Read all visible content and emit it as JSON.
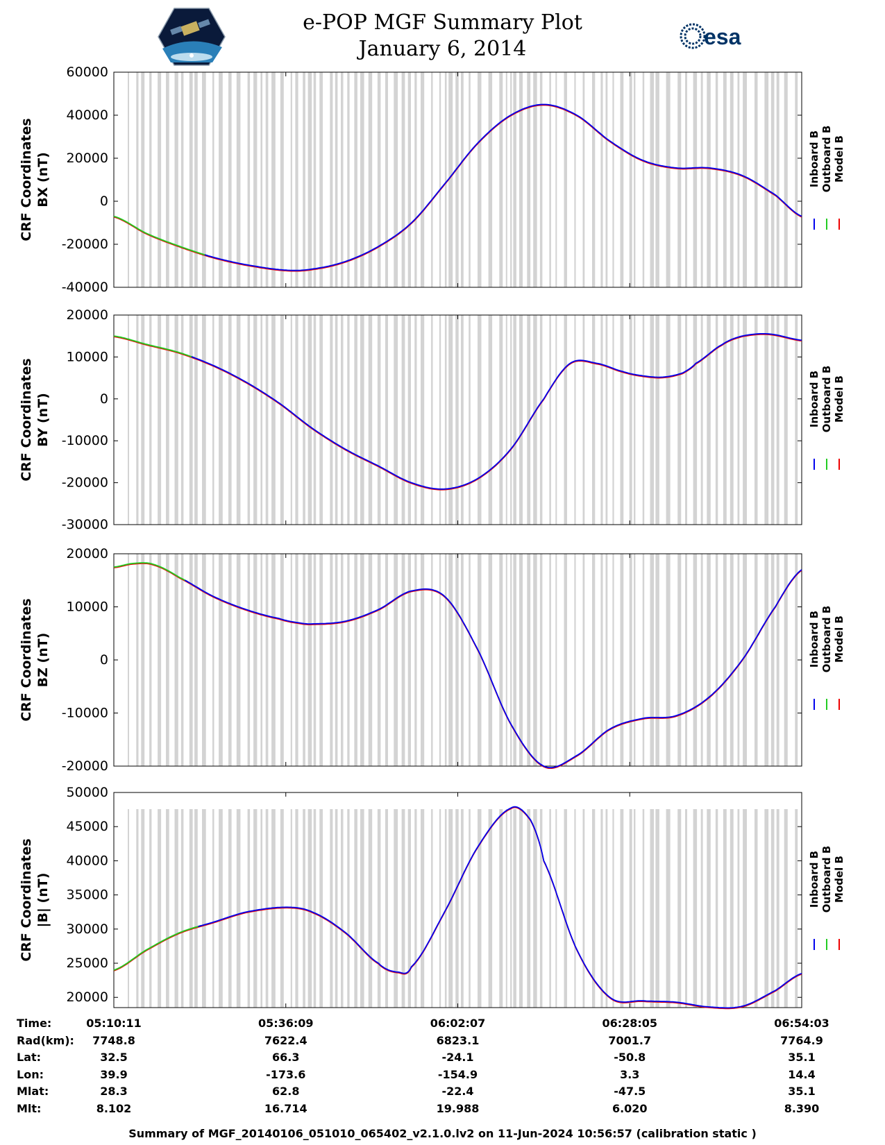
{
  "title": {
    "line1": "e-POP MGF Summary Plot",
    "line2": "January 6, 2014",
    "logo_right_text": "esa"
  },
  "colors": {
    "inboard": "#0000ee",
    "outboard": "#22cc22",
    "model": "#ee0000",
    "gap": "#d3d3d3"
  },
  "chart_data": [
    {
      "type": "line",
      "title": "",
      "ylabel": [
        "CRF Coordinates",
        "BX (nT)"
      ],
      "ylim": [
        -40000,
        60000
      ],
      "yticks": [
        -40000,
        -20000,
        0,
        20000,
        40000,
        60000
      ],
      "legend": [
        "Inboard B",
        "Outboard B",
        "Model B"
      ],
      "legend_placement": "right",
      "x_minutes": [
        0,
        5,
        10,
        15,
        20,
        26,
        30,
        35,
        40,
        45,
        50,
        55,
        60,
        65,
        70,
        75,
        80,
        85,
        90,
        95,
        100,
        104
      ],
      "values": [
        -7000,
        -15000,
        -21000,
        -26000,
        -29500,
        -32000,
        -31500,
        -28000,
        -21000,
        -10000,
        8000,
        27000,
        40000,
        45000,
        40000,
        28000,
        19000,
        15500,
        15500,
        12000,
        3000,
        -7000
      ],
      "outboard_until_minute": 14
    },
    {
      "type": "line",
      "title": "",
      "ylabel": [
        "CRF Coordinates",
        "BY (nT)"
      ],
      "ylim": [
        -30000,
        20000
      ],
      "yticks": [
        -30000,
        -20000,
        -10000,
        0,
        10000,
        20000
      ],
      "legend": [
        "Inboard B",
        "Outboard B",
        "Model B"
      ],
      "legend_placement": "right",
      "x_minutes": [
        0,
        5,
        10,
        15,
        20,
        25,
        30,
        35,
        40,
        45,
        50,
        55,
        60,
        65,
        69,
        73,
        77,
        80,
        83,
        86,
        88,
        92,
        95,
        99,
        104
      ],
      "values": [
        15000,
        13000,
        11000,
        8000,
        4000,
        -1000,
        -7000,
        -12000,
        -16000,
        -20000,
        -21500,
        -19000,
        -12000,
        0,
        8500,
        8500,
        6500,
        5500,
        5200,
        6200,
        8500,
        13000,
        15000,
        15500,
        14000
      ],
      "outboard_until_minute": 12
    },
    {
      "type": "line",
      "title": "",
      "ylabel": [
        "CRF Coordinates",
        "BZ (nT)"
      ],
      "ylim": [
        -20000,
        20000
      ],
      "yticks": [
        -20000,
        -10000,
        0,
        10000,
        20000
      ],
      "legend": [
        "Inboard B",
        "Outboard B",
        "Model B"
      ],
      "legend_placement": "right",
      "x_minutes": [
        0,
        3,
        6,
        10,
        15,
        20,
        25,
        28,
        30,
        35,
        40,
        45,
        50,
        55,
        60,
        65,
        70,
        75,
        80,
        85,
        90,
        95,
        100,
        104
      ],
      "values": [
        17500,
        18200,
        18000,
        15500,
        12000,
        9500,
        7800,
        7000,
        6800,
        7300,
        9500,
        13000,
        12000,
        2000,
        -12000,
        -20000,
        -18000,
        -13000,
        -11000,
        -10500,
        -7000,
        0,
        10000,
        17000
      ],
      "outboard_until_minute": 11
    },
    {
      "type": "line",
      "title": "",
      "ylabel": [
        "CRF Coordinates",
        "|B| (nT)"
      ],
      "ylim": [
        18500,
        50000
      ],
      "yticks": [
        20000,
        25000,
        30000,
        35000,
        40000,
        45000,
        50000
      ],
      "legend": [
        "Inboard B",
        "Outboard B",
        "Model B"
      ],
      "legend_placement": "right",
      "x_minutes": [
        0,
        5,
        10,
        15,
        20,
        26,
        30,
        35,
        40,
        43,
        45,
        50,
        55,
        60,
        63,
        65,
        70,
        75,
        80,
        85,
        90,
        95,
        100,
        104
      ],
      "values": [
        24000,
        27000,
        29500,
        31000,
        32500,
        33200,
        32500,
        29500,
        25000,
        23700,
        24500,
        32500,
        42000,
        47700,
        46000,
        40000,
        27000,
        20000,
        19500,
        19300,
        18600,
        18700,
        21000,
        23500
      ],
      "outboard_until_minute": 13
    }
  ],
  "x_axis": {
    "tick_minutes": [
      0,
      26,
      52,
      78,
      104
    ],
    "rows": [
      {
        "label": "Time:",
        "values": [
          "05:10:11",
          "05:36:09",
          "06:02:07",
          "06:28:05",
          "06:54:03"
        ]
      },
      {
        "label": "Rad(km):",
        "values": [
          "7748.8",
          "7622.4",
          "6823.1",
          "7001.7",
          "7764.9"
        ]
      },
      {
        "label": "Lat:",
        "values": [
          "32.5",
          "66.3",
          "-24.1",
          "-50.8",
          "35.1"
        ]
      },
      {
        "label": "Lon:",
        "values": [
          "39.9",
          "-173.6",
          "-154.9",
          "3.3",
          "14.4"
        ]
      },
      {
        "label": "Mlat:",
        "values": [
          "28.3",
          "62.8",
          "-22.4",
          "-47.5",
          "35.1"
        ]
      },
      {
        "label": "Mlt:",
        "values": [
          "8.102",
          "16.714",
          "19.988",
          "6.020",
          "8.390"
        ]
      }
    ]
  },
  "footer": "Summary of MGF_20140106_051010_065402_v2.1.0.lv2 on 11-Jun-2024 10:56:57 (calibration static )"
}
